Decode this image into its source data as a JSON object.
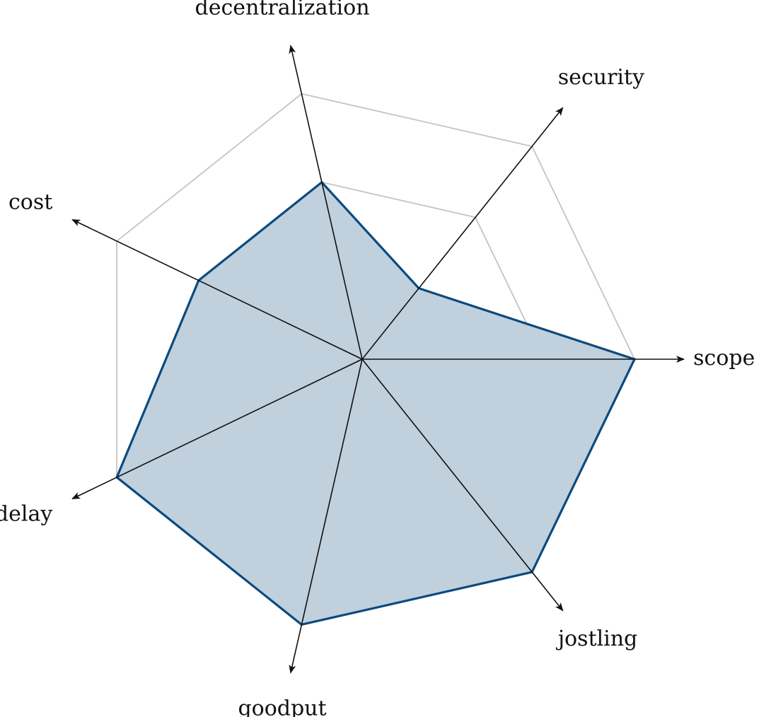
{
  "chart_data": {
    "type": "radar",
    "axes": [
      "scope",
      "security",
      "decentralization",
      "cost",
      "delay",
      "goodput",
      "jostling"
    ],
    "values": [
      3,
      1,
      2,
      2,
      3,
      3,
      3
    ],
    "range": [
      0,
      3
    ],
    "grid_levels": [
      1,
      2,
      3
    ],
    "colors": {
      "fill": "#c0d0dd",
      "line": "#0b4a7e",
      "grid": "#c4c4c4",
      "axis": "#111111"
    }
  }
}
